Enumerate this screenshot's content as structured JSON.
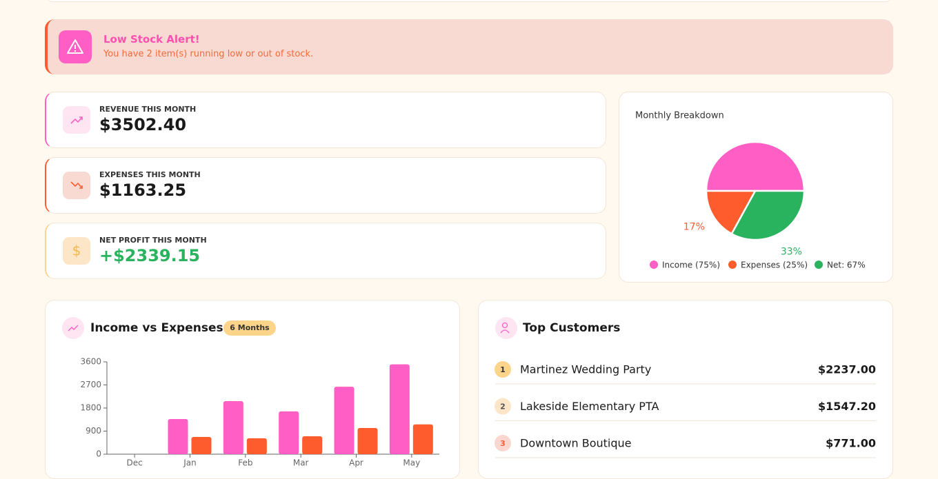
{
  "alert": {
    "title": "Low Stock Alert!",
    "message": "You have 2 item(s) running low or out of stock."
  },
  "stats": [
    {
      "label": "REVENUE THIS MONTH",
      "value": "$3502.40"
    },
    {
      "label": "EXPENSES THIS MONTH",
      "value": "$1163.25"
    },
    {
      "label": "NET PROFIT THIS MONTH",
      "value": "+$2339.15"
    }
  ],
  "chart_data": [
    {
      "type": "pie",
      "title": "Monthly Breakdown",
      "categories": [
        "Income (75%)",
        "Expenses (25%)",
        "Net: 67%"
      ],
      "values": [
        50,
        17,
        33
      ],
      "value_labels": [
        null,
        "17%",
        "33%"
      ],
      "colors": [
        "#ff5fc4",
        "#ff5c2e",
        "#2ab35e"
      ]
    },
    {
      "type": "bar",
      "title": "Income vs Expenses",
      "badge": "6 Months",
      "categories": [
        "Dec",
        "Jan",
        "Feb",
        "Mar",
        "Apr",
        "May"
      ],
      "series": [
        {
          "color": "#ff5fc4",
          "values": [
            0,
            1370,
            2070,
            1670,
            2630,
            3502
          ]
        },
        {
          "color": "#ff5c2e",
          "values": [
            0,
            670,
            620,
            700,
            1020,
            1163
          ]
        }
      ],
      "ylim": [
        0,
        3600
      ],
      "yticks": [
        0,
        900,
        1800,
        2700,
        3600
      ],
      "grid": false
    }
  ],
  "customers": {
    "title": "Top Customers",
    "rows": [
      {
        "rank": "1",
        "name": "Martinez Wedding Party",
        "amount": "$2237.00"
      },
      {
        "rank": "2",
        "name": "Lakeside Elementary PTA",
        "amount": "$1547.20"
      },
      {
        "rank": "3",
        "name": "Downtown Boutique",
        "amount": "$771.00"
      }
    ]
  }
}
